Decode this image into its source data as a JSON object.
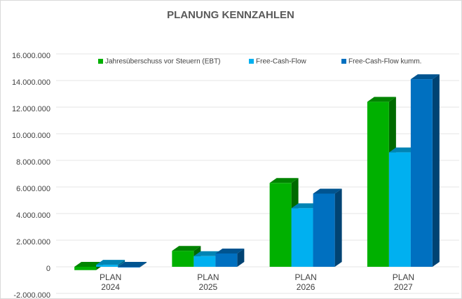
{
  "chart_data": {
    "type": "bar3d",
    "title": "PLANUNG KENNZAHLEN",
    "categories": [
      [
        "PLAN",
        "2024"
      ],
      [
        "PLAN",
        "2025"
      ],
      [
        "PLAN",
        "2026"
      ],
      [
        "PLAN",
        "2027"
      ]
    ],
    "series": [
      {
        "name": "Jahresüberschuss vor Steuern (EBT)",
        "color": "#00b000",
        "values": [
          -250000,
          1200000,
          6300000,
          12400000
        ]
      },
      {
        "name": "Free-Cash-Flow",
        "color": "#00b0f0",
        "values": [
          150000,
          800000,
          4400000,
          8600000
        ]
      },
      {
        "name": "Free-Cash-Flow kumm.",
        "color": "#0070c0",
        "values": [
          0,
          1000000,
          5500000,
          14100000
        ]
      }
    ],
    "ylim": [
      -2000000,
      16000000
    ],
    "yticks": [
      {
        "value": -2000000,
        "label": "-2.000.000"
      },
      0,
      {
        "value": 2000000,
        "label": "2.000.000"
      },
      {
        "value": 4000000,
        "label": "4.000.000"
      },
      {
        "value": 6000000,
        "label": "6.000.000"
      },
      {
        "value": 8000000,
        "label": "8.000.000"
      },
      {
        "value": 10000000,
        "label": "10.000.000"
      },
      {
        "value": 12000000,
        "label": "12.000.000"
      },
      {
        "value": 14000000,
        "label": "14.000.000"
      },
      {
        "value": 16000000,
        "label": "16.000.000"
      }
    ],
    "grid": true,
    "legend": "top"
  }
}
